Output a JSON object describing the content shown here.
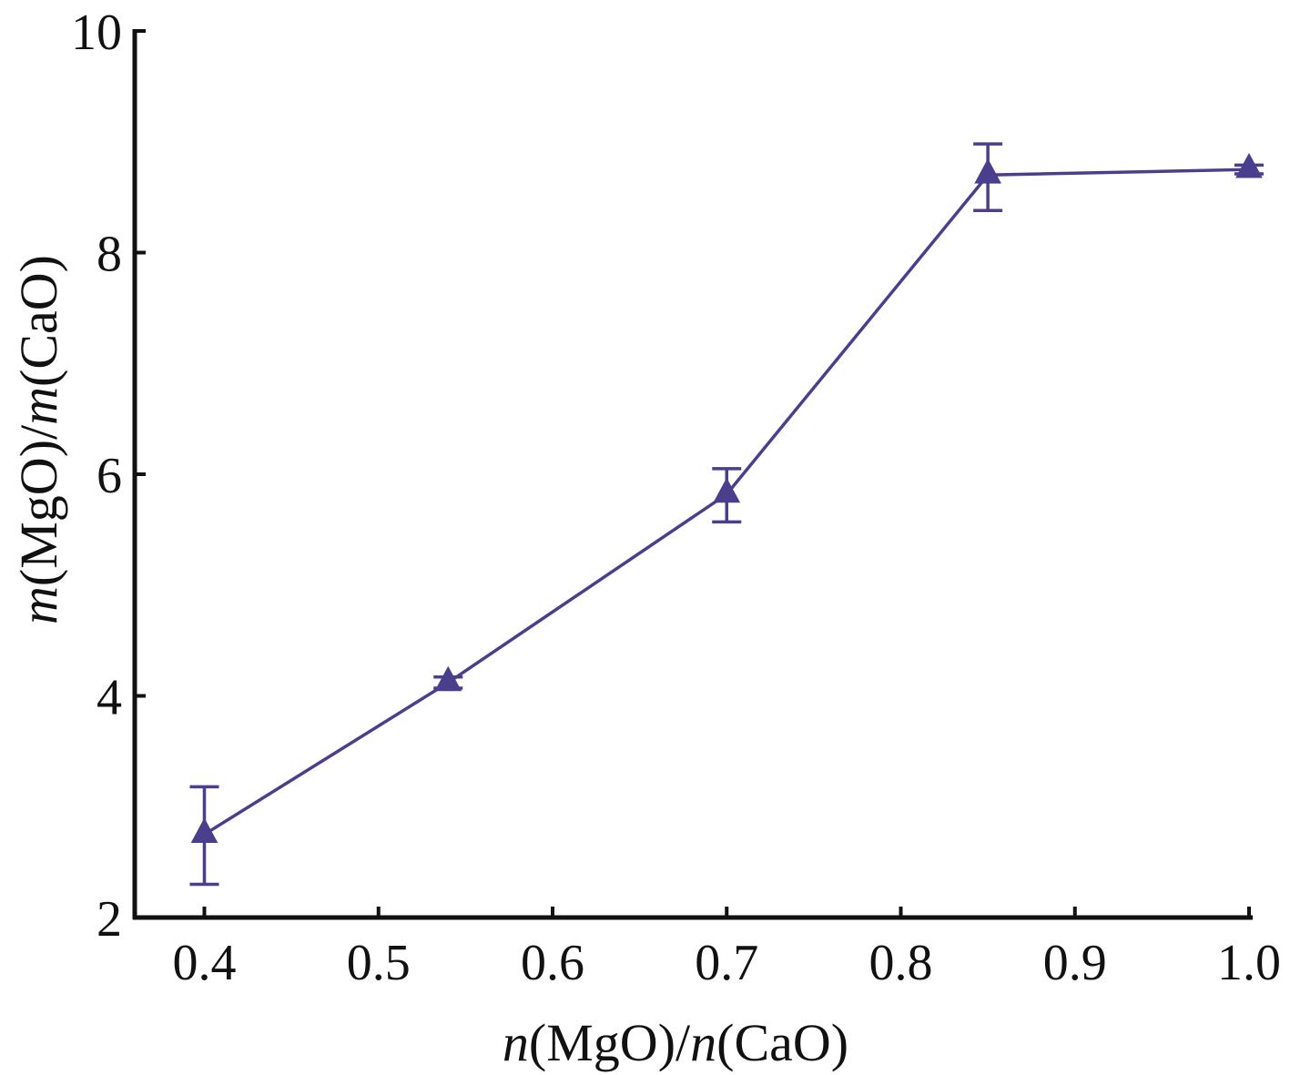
{
  "chart_data": {
    "type": "line",
    "title": "",
    "xlabel": {
      "parts": [
        {
          "text": "n",
          "italic": true
        },
        {
          "text": "(MgO)/",
          "italic": false
        },
        {
          "text": "n",
          "italic": true
        },
        {
          "text": "(CaO)",
          "italic": false
        }
      ]
    },
    "ylabel": {
      "parts": [
        {
          "text": "m",
          "italic": true
        },
        {
          "text": "(MgO)/",
          "italic": false
        },
        {
          "text": "m",
          "italic": true
        },
        {
          "text": "(CaO)",
          "italic": false
        }
      ]
    },
    "xlim": [
      0.36,
      1.0
    ],
    "ylim": [
      2,
      10
    ],
    "xticks": [
      0.4,
      0.5,
      0.6,
      0.7,
      0.8,
      0.9,
      1.0
    ],
    "xtick_labels": [
      "0.4",
      "0.5",
      "0.6",
      "0.7",
      "0.8",
      "0.9",
      "1.0"
    ],
    "yticks": [
      2,
      4,
      6,
      8,
      10
    ],
    "ytick_labels": [
      "2",
      "4",
      "6",
      "8",
      "10"
    ],
    "grid": false,
    "series": [
      {
        "marker": "triangle",
        "color": "#4a3f8c",
        "x": [
          0.4,
          0.54,
          0.7,
          0.85,
          1.0
        ],
        "y": [
          2.75,
          4.12,
          5.82,
          8.7,
          8.75
        ],
        "err_low": [
          0.45,
          0.05,
          0.25,
          0.32,
          0.04
        ],
        "err_high": [
          0.43,
          0.05,
          0.23,
          0.28,
          0.04
        ]
      }
    ]
  }
}
